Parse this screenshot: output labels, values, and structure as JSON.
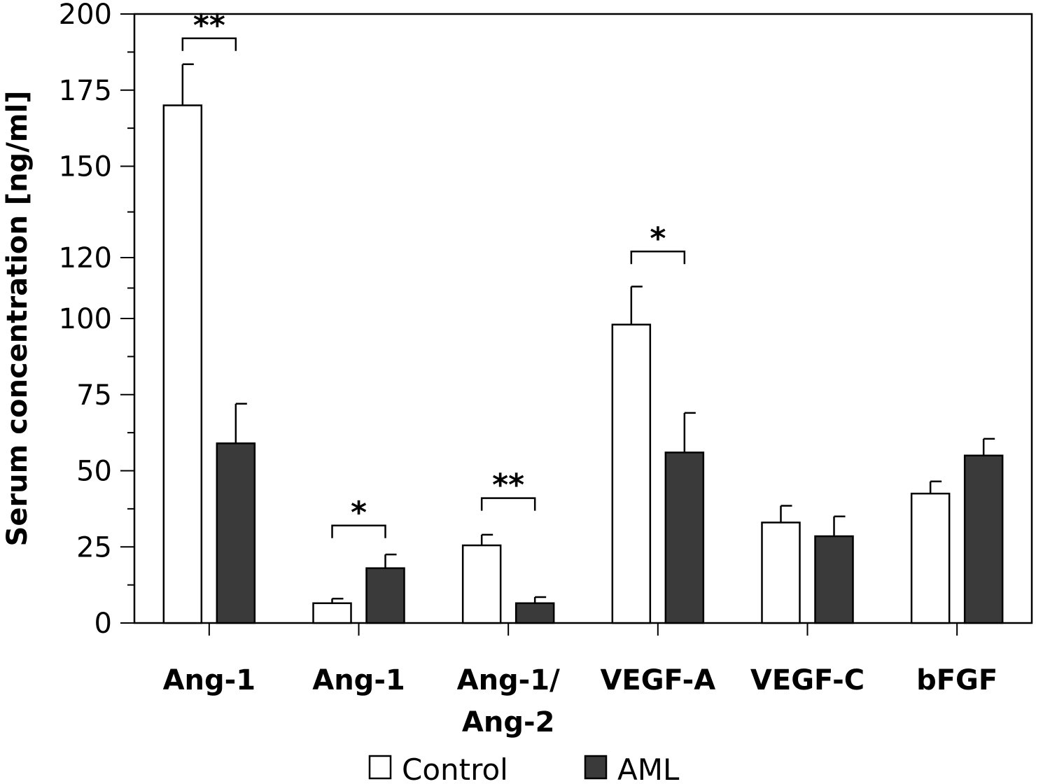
{
  "chart_data": {
    "type": "bar",
    "title": "",
    "xlabel": "",
    "ylabel": "Serum concentration [ng/ml]",
    "ylim": [
      0,
      200
    ],
    "yticks": [
      0,
      25,
      50,
      75,
      100,
      120,
      150,
      175,
      200
    ],
    "grid": false,
    "legend_placement": "bottom",
    "categories": [
      [
        "Ang-1"
      ],
      [
        "Ang-1"
      ],
      [
        "Ang-1/",
        "Ang-2"
      ],
      [
        "VEGF-A"
      ],
      [
        "VEGF-C"
      ],
      [
        "bFGF"
      ]
    ],
    "series": [
      {
        "name": "Control",
        "color": "#ffffff",
        "values": [
          170,
          6.5,
          25.5,
          98,
          33,
          42.5
        ],
        "errors": [
          13.5,
          1.5,
          3.5,
          12.5,
          5.5,
          4
        ]
      },
      {
        "name": "AML",
        "color": "#3a3a3a",
        "values": [
          59,
          18,
          6.5,
          56,
          28.5,
          55
        ],
        "errors": [
          13,
          4.5,
          2,
          13,
          6.5,
          5.5
        ]
      }
    ],
    "significance": [
      {
        "category_index": 0,
        "label": "**",
        "y": 192
      },
      {
        "category_index": 1,
        "label": "*",
        "y": 32
      },
      {
        "category_index": 2,
        "label": "**",
        "y": 41
      },
      {
        "category_index": 3,
        "label": "*",
        "y": 122
      }
    ]
  }
}
